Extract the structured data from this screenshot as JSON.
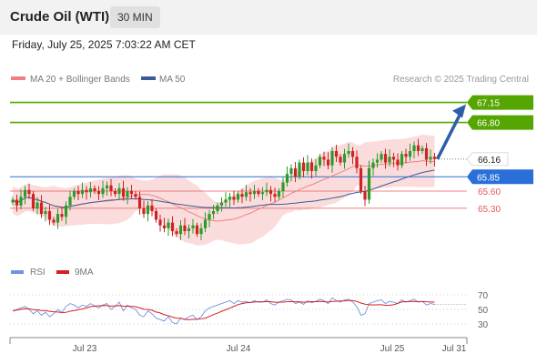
{
  "header": {
    "title": "Crude Oil (WTI)",
    "timeframe": "30 MIN"
  },
  "datetime": "Friday, July 25, 2025 7:03:22 AM CET",
  "legend": {
    "ma20_bb": "MA 20 + Bollinger Bands",
    "ma50": "MA 50",
    "rsi": "RSI",
    "ma9": "9MA"
  },
  "source": "Research © 2025 Trading Central",
  "colors": {
    "up_level": "#55a600",
    "down_level": "#e25b5b",
    "pivot": "#2a6fd8",
    "candle_up": "#2c9b2c",
    "candle_down": "#d02222",
    "bollinger": "#f8c0c0",
    "ma20": "#f08080",
    "ma50": "#3b5a9a",
    "rsi": "#6f93e0",
    "rsi_ma": "#d61f1f",
    "arrow": "#2f5ea8"
  },
  "chart_data": {
    "type": "candlestick",
    "instrument": "Crude Oil (WTI)",
    "timeframe": "30 MIN",
    "ylim": [
      64.55,
      67.35
    ],
    "xlabels": [
      "Jul 23",
      "Jul 24",
      "Jul 25",
      "Jul 31"
    ],
    "levels": [
      {
        "value": 67.15,
        "label": "67.15",
        "kind": "resistance"
      },
      {
        "value": 66.8,
        "label": "66.80",
        "kind": "resistance"
      },
      {
        "value": 66.16,
        "label": "66.16",
        "kind": "last"
      },
      {
        "value": 65.85,
        "label": "65.85",
        "kind": "pivot"
      },
      {
        "value": 65.6,
        "label": "65.60",
        "kind": "support"
      },
      {
        "value": 65.3,
        "label": "65.30",
        "kind": "support"
      }
    ],
    "close": [
      65.45,
      65.35,
      65.5,
      65.62,
      65.55,
      65.3,
      65.4,
      65.2,
      65.25,
      65.1,
      65.05,
      65.2,
      65.15,
      65.35,
      65.5,
      65.6,
      65.55,
      65.62,
      65.58,
      65.65,
      65.6,
      65.55,
      65.65,
      65.7,
      65.6,
      65.55,
      65.65,
      65.5,
      65.6,
      65.55,
      65.5,
      65.3,
      65.2,
      65.35,
      65.25,
      65.1,
      65.0,
      64.95,
      65.05,
      64.9,
      64.85,
      65.0,
      64.9,
      64.95,
      65.0,
      64.85,
      64.95,
      65.1,
      65.2,
      65.25,
      65.35,
      65.4,
      65.45,
      65.5,
      65.45,
      65.55,
      65.5,
      65.58,
      65.55,
      65.6,
      65.55,
      65.58,
      65.62,
      65.55,
      65.5,
      65.6,
      65.75,
      65.9,
      66.0,
      65.85,
      66.1,
      65.95,
      66.1,
      65.95,
      66.05,
      66.2,
      66.15,
      66.05,
      66.3,
      66.2,
      66.1,
      66.25,
      66.3,
      66.2,
      66.0,
      65.6,
      65.45,
      66.0,
      66.1,
      66.15,
      66.25,
      66.1,
      66.2,
      66.15,
      66.05,
      66.25,
      66.2,
      66.3,
      66.4,
      66.3,
      66.35,
      66.15,
      66.2,
      66.16
    ],
    "rsi": {
      "ticks": [
        70,
        50,
        30
      ],
      "ylim": [
        20,
        80
      ],
      "values": [
        48,
        50,
        52,
        54,
        50,
        44,
        48,
        42,
        46,
        40,
        44,
        50,
        46,
        54,
        58,
        56,
        52,
        56,
        54,
        58,
        55,
        52,
        56,
        58,
        50,
        54,
        60,
        48,
        56,
        52,
        50,
        42,
        40,
        48,
        44,
        38,
        36,
        34,
        40,
        32,
        30,
        38,
        36,
        40,
        42,
        36,
        40,
        48,
        52,
        54,
        56,
        58,
        60,
        62,
        58,
        62,
        60,
        61,
        59,
        62,
        60,
        60,
        63,
        58,
        56,
        60,
        62,
        64,
        63,
        58,
        60,
        57,
        62,
        59,
        61,
        64,
        62,
        58,
        66,
        62,
        60,
        63,
        64,
        60,
        54,
        42,
        44,
        58,
        60,
        62,
        63,
        58,
        61,
        60,
        58,
        63,
        60,
        62,
        64,
        60,
        61,
        56,
        58,
        57
      ]
    }
  }
}
